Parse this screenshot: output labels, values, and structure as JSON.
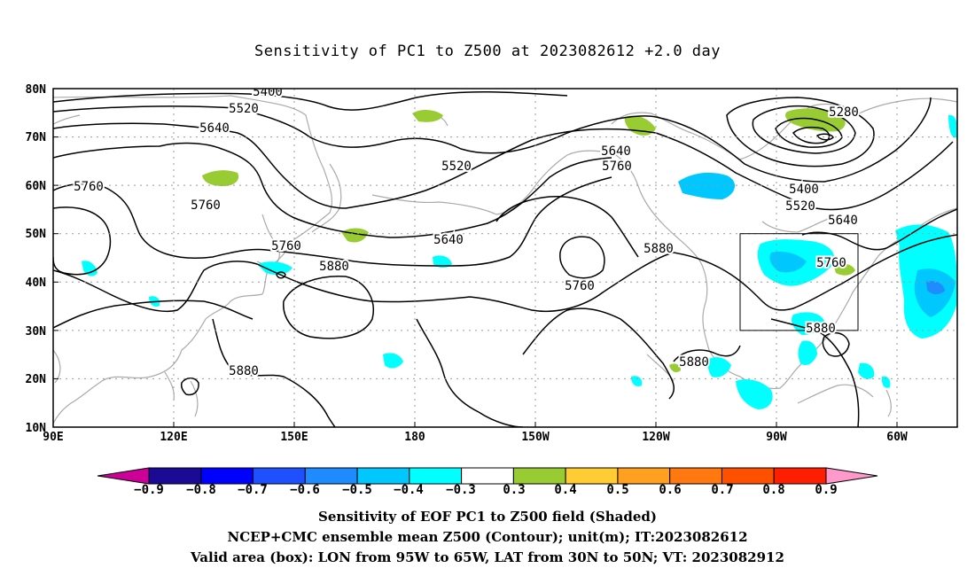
{
  "title": "Sensitivity of PC1 to Z500 at 2023082612 +2.0 day",
  "map": {
    "lat_labels": [
      "80N",
      "70N",
      "60N",
      "50N",
      "40N",
      "30N",
      "20N",
      "10N"
    ],
    "lon_labels": [
      "90E",
      "120E",
      "150E",
      "180",
      "150W",
      "120W",
      "90W",
      "60W"
    ],
    "contour_labels": [
      {
        "text": "5400"
      },
      {
        "text": "5520"
      },
      {
        "text": "5640"
      },
      {
        "text": "5760"
      },
      {
        "text": "5520"
      },
      {
        "text": "5640"
      },
      {
        "text": "5760"
      },
      {
        "text": "5760"
      },
      {
        "text": "5640"
      },
      {
        "text": "5760"
      },
      {
        "text": "5880"
      },
      {
        "text": "5880"
      },
      {
        "text": "5760"
      },
      {
        "text": "5880"
      },
      {
        "text": "5880"
      },
      {
        "text": "5280"
      },
      {
        "text": "5400"
      },
      {
        "text": "5520"
      },
      {
        "text": "5640"
      },
      {
        "text": "5760"
      },
      {
        "text": "5880"
      }
    ]
  },
  "colorbar": {
    "labels": [
      "−0.9",
      "−0.8",
      "−0.7",
      "−0.6",
      "−0.5",
      "−0.4",
      "−0.3",
      "0.3",
      "0.4",
      "0.5",
      "0.6",
      "0.7",
      "0.8",
      "0.9"
    ],
    "colors": [
      "#1a0a96",
      "#0000ff",
      "#1e50ff",
      "#1e8cff",
      "#00c8ff",
      "#00ffff",
      "#ffffff",
      "#99cc33",
      "#ffcc33",
      "#ffa020",
      "#ff7810",
      "#ff5000",
      "#ff1e00"
    ],
    "low_color": "#cc0099",
    "high_color": "#ff99cc"
  },
  "caption": {
    "line1": "Sensitivity of EOF PC1 to Z500 field (Shaded)",
    "line2": "NCEP+CMC ensemble mean Z500 (Contour); unit(m); IT:2023082612",
    "line3": "Valid area (box): LON from 95W to 65W, LAT from 30N to 50N; VT: 2023082912"
  },
  "colors": {
    "contour": "#000000",
    "coast": "#aaaaaa",
    "grid": "#999999",
    "neg_shade": "#00c8ff",
    "neg_shade_light": "#00ffff",
    "pos_shade": "#99cc33"
  }
}
